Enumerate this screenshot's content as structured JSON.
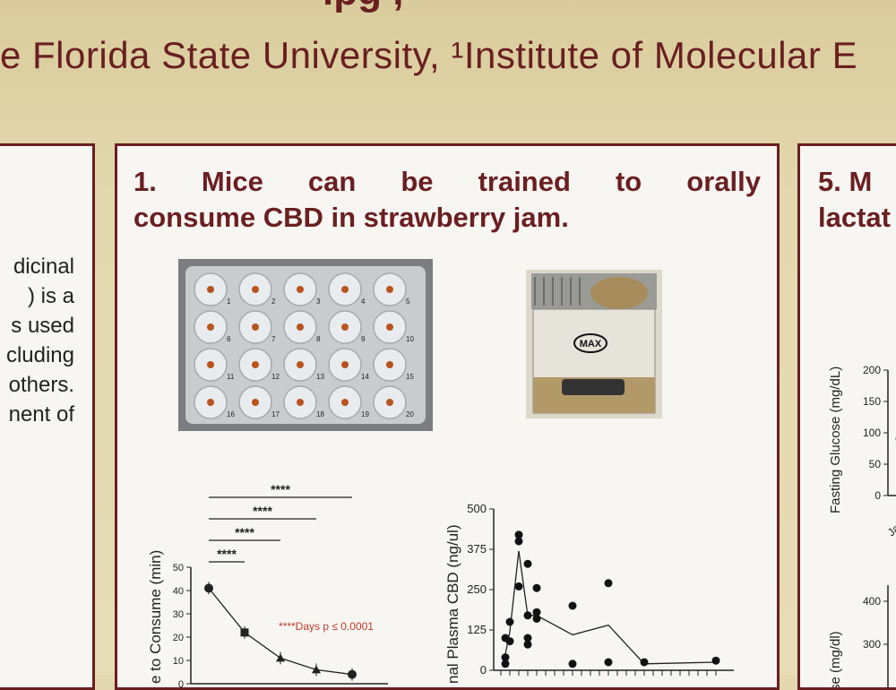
{
  "poster": {
    "title_fragment": "ipg             ,",
    "affiliation": "e Florida State University, ¹Institute of Molecular E"
  },
  "left_panel": {
    "lines": [
      "dicinal",
      ") is  a",
      "s used",
      "cluding",
      "others.",
      "nent of"
    ]
  },
  "panel1": {
    "heading_line1": "1.  Mice  can  be  trained  to  orally",
    "heading_line2": "consume CBD in strawberry jam."
  },
  "panel5": {
    "heading_line1": "5.  M",
    "heading_line2": "lactat"
  },
  "plate_photo": {
    "well_labels": [
      "1",
      "2",
      "3",
      "4",
      "5",
      "6",
      "7",
      "8",
      "9",
      "10",
      "11",
      "12",
      "13",
      "14",
      "15",
      "16",
      "17",
      "18",
      "19",
      "20"
    ]
  },
  "cage_photo": {
    "label": "MAX"
  },
  "colors": {
    "maroon": "#6a1f21",
    "annotation_red": "#c0392b",
    "cream": "#e2d7ae"
  },
  "chart_data": [
    {
      "type": "line",
      "ylabel": "e to Consume (min)",
      "ylim": [
        0,
        50
      ],
      "y_ticks": [
        0,
        10,
        20,
        30,
        40,
        50
      ],
      "x": [
        1,
        2,
        3,
        4,
        5
      ],
      "series": [
        {
          "values": [
            41,
            22,
            11,
            6,
            4
          ]
        }
      ],
      "annotation": "****Days p ≤ 0.0001",
      "significance_bars": [
        {
          "label": "****",
          "from": 1,
          "to": 2
        },
        {
          "label": "****",
          "from": 1,
          "to": 3
        },
        {
          "label": "****",
          "from": 1,
          "to": 4
        },
        {
          "label": "****",
          "from": 1,
          "to": 5
        }
      ]
    },
    {
      "type": "scatter",
      "ylabel": "nal Plasma CBD (ng/ul)",
      "ylim": [
        0,
        500
      ],
      "y_ticks": [
        0,
        125,
        250,
        375,
        500
      ],
      "points": [
        [
          0.5,
          20
        ],
        [
          0.5,
          40
        ],
        [
          0.5,
          100
        ],
        [
          1,
          150
        ],
        [
          1,
          90
        ],
        [
          2,
          400
        ],
        [
          2,
          420
        ],
        [
          2,
          260
        ],
        [
          3,
          330
        ],
        [
          3,
          80
        ],
        [
          3,
          170
        ],
        [
          3,
          100
        ],
        [
          4,
          255
        ],
        [
          4,
          160
        ],
        [
          4,
          180
        ],
        [
          8,
          200
        ],
        [
          8,
          20
        ],
        [
          12,
          270
        ],
        [
          12,
          25
        ],
        [
          16,
          25
        ],
        [
          24,
          30
        ]
      ],
      "mean_line": [
        [
          0.5,
          50
        ],
        [
          1,
          120
        ],
        [
          2,
          370
        ],
        [
          3,
          170
        ],
        [
          4,
          170
        ],
        [
          8,
          110
        ],
        [
          12,
          140
        ],
        [
          16,
          20
        ],
        [
          24,
          25
        ]
      ]
    },
    {
      "type": "scatter",
      "ylabel": "Fasting Glucose (mg/dL)",
      "ylim": [
        0,
        200
      ],
      "y_ticks": [
        0,
        50,
        100,
        150,
        200
      ],
      "tick_fragment": "Ja"
    },
    {
      "type": "line",
      "ylabel": "se (mg/dl)",
      "y_ticks": [
        300,
        400
      ]
    }
  ]
}
